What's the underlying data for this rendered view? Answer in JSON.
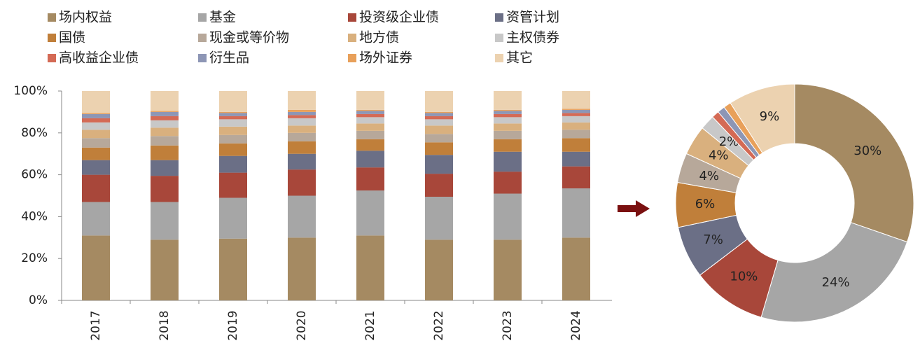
{
  "chart_data": [
    {
      "type": "stacked-bar",
      "categories": [
        "2017",
        "2018",
        "2019",
        "2020",
        "2021",
        "2022",
        "2023",
        "2024"
      ],
      "ylim": [
        0,
        100
      ],
      "yticks": [
        {
          "value": 0,
          "label": "0%"
        },
        {
          "value": 20,
          "label": "20%"
        },
        {
          "value": 40,
          "label": "40%"
        },
        {
          "value": 60,
          "label": "60%"
        },
        {
          "value": 80,
          "label": "80%"
        },
        {
          "value": 100,
          "label": "100%"
        }
      ],
      "series": [
        {
          "name": "场内权益",
          "color": "#a58a62",
          "values": [
            31,
            29,
            29.5,
            30,
            31,
            29,
            29,
            30
          ]
        },
        {
          "name": "基金",
          "color": "#a6a6a6",
          "values": [
            16,
            18,
            19.5,
            20,
            21.5,
            20.5,
            22,
            23.5
          ]
        },
        {
          "name": "投资级企业债",
          "color": "#a8473a",
          "values": [
            13,
            12.5,
            12,
            12.5,
            11,
            11,
            10.5,
            10.5
          ]
        },
        {
          "name": "资管计划",
          "color": "#6b6f86",
          "values": [
            7,
            7.5,
            8,
            7.5,
            8,
            9,
            9.5,
            7
          ]
        },
        {
          "name": "国债",
          "color": "#c07f3a",
          "values": [
            6,
            7,
            6,
            6,
            5.5,
            6,
            6,
            6.5
          ]
        },
        {
          "name": "现金或等价物",
          "color": "#b7a89a",
          "values": [
            4.5,
            4.5,
            4,
            4,
            4,
            4,
            4,
            4
          ]
        },
        {
          "name": "地方债",
          "color": "#d9b07e",
          "values": [
            4,
            4,
            4,
            3.5,
            3.5,
            4,
            3.5,
            3.5
          ]
        },
        {
          "name": "主权债券",
          "color": "#c8c8c8",
          "values": [
            3.5,
            3.5,
            3.5,
            3.5,
            3,
            3,
            3,
            3
          ]
        },
        {
          "name": "高收益企业债",
          "color": "#d46a55",
          "values": [
            2,
            2,
            1.5,
            1.5,
            1.5,
            1.5,
            1.5,
            1.5
          ]
        },
        {
          "name": "衍生品",
          "color": "#8d96b5",
          "values": [
            2,
            2,
            1.5,
            1.5,
            1.5,
            1.5,
            1.5,
            1.5
          ]
        },
        {
          "name": "场外证券",
          "color": "#e8a05a",
          "values": [
            0.5,
            0.5,
            0.5,
            1,
            0.5,
            0.5,
            0.5,
            0.5
          ]
        },
        {
          "name": "其它",
          "color": "#ecd2b0",
          "values": [
            10.5,
            9.5,
            10,
            9,
            9,
            10,
            9,
            8.5
          ]
        }
      ]
    },
    {
      "type": "donut",
      "values": [
        30,
        24,
        10,
        7,
        6,
        4,
        4,
        2,
        1,
        1,
        1,
        9
      ],
      "value_labels": [
        "30%",
        "24%",
        "10%",
        "7%",
        "6%",
        "4%",
        "4%",
        "2%",
        null,
        null,
        null,
        "9%"
      ],
      "colors": [
        "#a58a62",
        "#a6a6a6",
        "#a8473a",
        "#6b6f86",
        "#c07f3a",
        "#b7a89a",
        "#d9b07e",
        "#c8c8c8",
        "#d46a55",
        "#8d96b5",
        "#e8a05a",
        "#ecd2b0"
      ]
    }
  ]
}
